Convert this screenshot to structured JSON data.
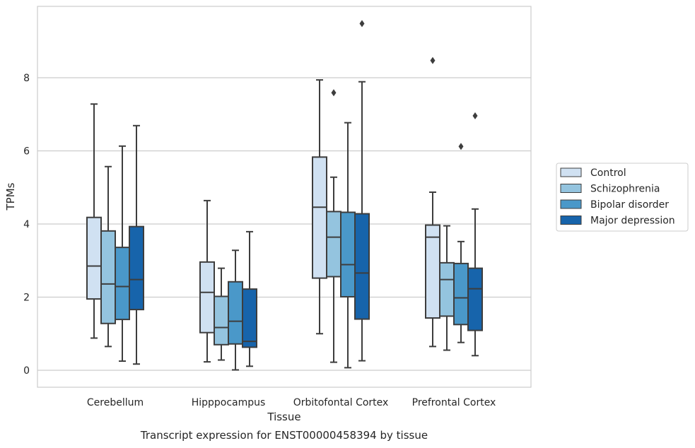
{
  "caption": "Transcript expression for ENST00000458394 by tissue",
  "chart_data": {
    "type": "box",
    "xlabel": "Tissue",
    "ylabel": "TPMs",
    "ylim": [
      -0.45,
      9.9
    ],
    "yticks": [
      0,
      2,
      4,
      6,
      8
    ],
    "grid": "horizontal",
    "legend_position": "right",
    "categories": [
      "Cerebellum",
      "Hipppocampus",
      "Orbitofontal Cortex",
      "Prefrontal Cortex"
    ],
    "series": [
      {
        "name": "Control",
        "color": "#d0e1f2",
        "boxes": [
          {
            "whislo": 0.88,
            "q1": 1.95,
            "med": 2.85,
            "q3": 4.18,
            "whishi": 7.28,
            "fliers": []
          },
          {
            "whislo": 0.23,
            "q1": 1.03,
            "med": 2.13,
            "q3": 2.96,
            "whishi": 4.64,
            "fliers": []
          },
          {
            "whislo": 1.0,
            "q1": 2.52,
            "med": 4.46,
            "q3": 5.83,
            "whishi": 7.94,
            "fliers": []
          },
          {
            "whislo": 0.65,
            "q1": 1.43,
            "med": 3.64,
            "q3": 3.97,
            "whishi": 4.87,
            "fliers": [
              8.47
            ]
          }
        ]
      },
      {
        "name": "Schizophrenia",
        "color": "#94c4df",
        "boxes": [
          {
            "whislo": 0.65,
            "q1": 1.28,
            "med": 2.36,
            "q3": 3.81,
            "whishi": 5.57,
            "fliers": []
          },
          {
            "whislo": 0.28,
            "q1": 0.7,
            "med": 1.17,
            "q3": 2.02,
            "whishi": 2.79,
            "fliers": []
          },
          {
            "whislo": 0.22,
            "q1": 2.56,
            "med": 3.64,
            "q3": 4.34,
            "whishi": 5.28,
            "fliers": [
              7.59
            ]
          },
          {
            "whislo": 0.55,
            "q1": 1.48,
            "med": 2.48,
            "q3": 2.94,
            "whishi": 3.95,
            "fliers": []
          }
        ]
      },
      {
        "name": "Bipolar disorder",
        "color": "#4a98c9",
        "boxes": [
          {
            "whislo": 0.25,
            "q1": 1.39,
            "med": 2.29,
            "q3": 3.36,
            "whishi": 6.13,
            "fliers": []
          },
          {
            "whislo": 0.01,
            "q1": 0.72,
            "med": 1.34,
            "q3": 2.42,
            "whishi": 3.28,
            "fliers": []
          },
          {
            "whislo": 0.07,
            "q1": 2.01,
            "med": 2.89,
            "q3": 4.32,
            "whishi": 6.77,
            "fliers": []
          },
          {
            "whislo": 0.76,
            "q1": 1.25,
            "med": 1.98,
            "q3": 2.92,
            "whishi": 3.52,
            "fliers": [
              6.12
            ]
          }
        ]
      },
      {
        "name": "Major depression",
        "color": "#1764ab",
        "boxes": [
          {
            "whislo": 0.17,
            "q1": 1.66,
            "med": 2.48,
            "q3": 3.93,
            "whishi": 6.69,
            "fliers": []
          },
          {
            "whislo": 0.11,
            "q1": 0.63,
            "med": 0.79,
            "q3": 2.22,
            "whishi": 3.79,
            "fliers": []
          },
          {
            "whislo": 0.26,
            "q1": 1.4,
            "med": 2.66,
            "q3": 4.28,
            "whishi": 7.89,
            "fliers": [
              9.48
            ]
          },
          {
            "whislo": 0.4,
            "q1": 1.09,
            "med": 2.23,
            "q3": 2.79,
            "whishi": 4.41,
            "fliers": [
              6.96
            ]
          }
        ]
      }
    ]
  }
}
